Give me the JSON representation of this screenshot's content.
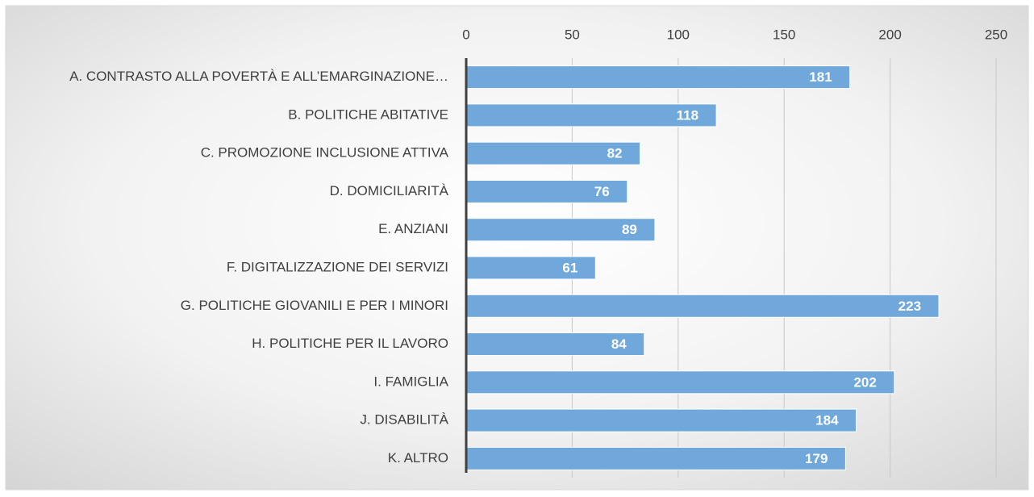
{
  "chart_data": {
    "type": "bar",
    "categories": [
      "A. CONTRASTO ALLA POVERTÀ E ALL’EMARGINAZIONE…",
      "B. POLITICHE ABITATIVE",
      "C. PROMOZIONE INCLUSIONE ATTIVA",
      "D. DOMICILIARITÀ",
      "E. ANZIANI",
      "F. DIGITALIZZAZIONE DEI SERVIZI",
      "G. POLITICHE GIOVANILI E PER I MINORI",
      "H. POLITICHE PER IL LAVORO",
      "I. FAMIGLIA",
      "J. DISABILITÀ",
      "K. ALTRO"
    ],
    "values": [
      181,
      118,
      82,
      76,
      89,
      61,
      223,
      84,
      202,
      184,
      179
    ],
    "color": "#70a8dc",
    "xlim": [
      0,
      250
    ],
    "xticks": [
      0,
      50,
      100,
      150,
      200,
      250
    ],
    "grid": true
  }
}
